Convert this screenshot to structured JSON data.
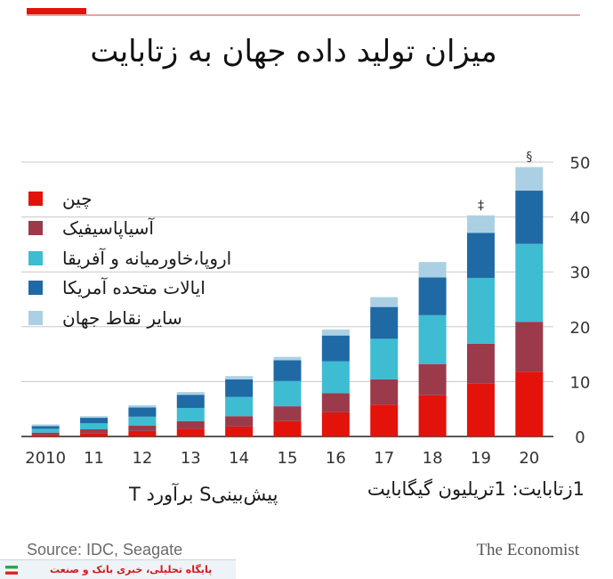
{
  "title": "میزان تولید داده جهان به زتابایت",
  "legend": [
    {
      "label": "چین",
      "color": "#e3120b"
    },
    {
      "label": "آسیاپاسیفیک",
      "color": "#9b3a4a"
    },
    {
      "label": "اروپا،خاورمیانه و آفریقا",
      "color": "#3ebcd2"
    },
    {
      "label": "ایالات متحده آمریکا",
      "color": "#1f6aa5"
    },
    {
      "label": "سایر نقاط جهان",
      "color": "#acd0e3"
    }
  ],
  "footnotes": {
    "unit": "1زتابایت: 1تریلیون گیگابایت",
    "estimate": "T برآورد   Sپیش‌بینی"
  },
  "source": "Source: IDC, Seagate",
  "brand": "The Economist",
  "watermark": "پایگاه تحلیلی، خبری بانک و صنعت",
  "chart_data": {
    "type": "bar",
    "stacked": true,
    "categories": [
      "2010",
      "11",
      "12",
      "13",
      "14",
      "15",
      "16",
      "17",
      "18",
      "19",
      "20"
    ],
    "series": [
      {
        "name": "چین",
        "color": "#e3120b",
        "values": [
          0.3,
          0.6,
          1.0,
          1.4,
          1.8,
          2.8,
          4.4,
          5.8,
          7.5,
          9.6,
          11.8
        ]
      },
      {
        "name": "آسیاپاسیفیک",
        "color": "#9b3a4a",
        "values": [
          0.4,
          0.7,
          1.0,
          1.4,
          1.9,
          2.7,
          3.5,
          4.6,
          5.7,
          7.3,
          9.1
        ]
      },
      {
        "name": "اروپا،خاورمیانه و آفریقا",
        "color": "#3ebcd2",
        "values": [
          0.7,
          1.1,
          1.6,
          2.4,
          3.5,
          4.6,
          5.8,
          7.4,
          8.9,
          12.0,
          14.2
        ]
      },
      {
        "name": "ایالات متحده آمریکا",
        "color": "#1f6aa5",
        "values": [
          0.5,
          1.0,
          1.7,
          2.4,
          3.2,
          3.8,
          4.7,
          5.8,
          6.9,
          8.2,
          9.7
        ]
      },
      {
        "name": "سایر نقاط جهان",
        "color": "#acd0e3",
        "values": [
          0.3,
          0.3,
          0.4,
          0.5,
          0.6,
          0.6,
          1.1,
          1.8,
          2.8,
          3.2,
          4.3
        ]
      }
    ],
    "marks": [
      {
        "category": "19",
        "symbol": "‡"
      },
      {
        "category": "20",
        "symbol": "§"
      }
    ],
    "ylim": [
      0,
      50
    ],
    "yticks": [
      0,
      10,
      20,
      30,
      40,
      50
    ],
    "grid": true,
    "legend_position": "top-left"
  }
}
